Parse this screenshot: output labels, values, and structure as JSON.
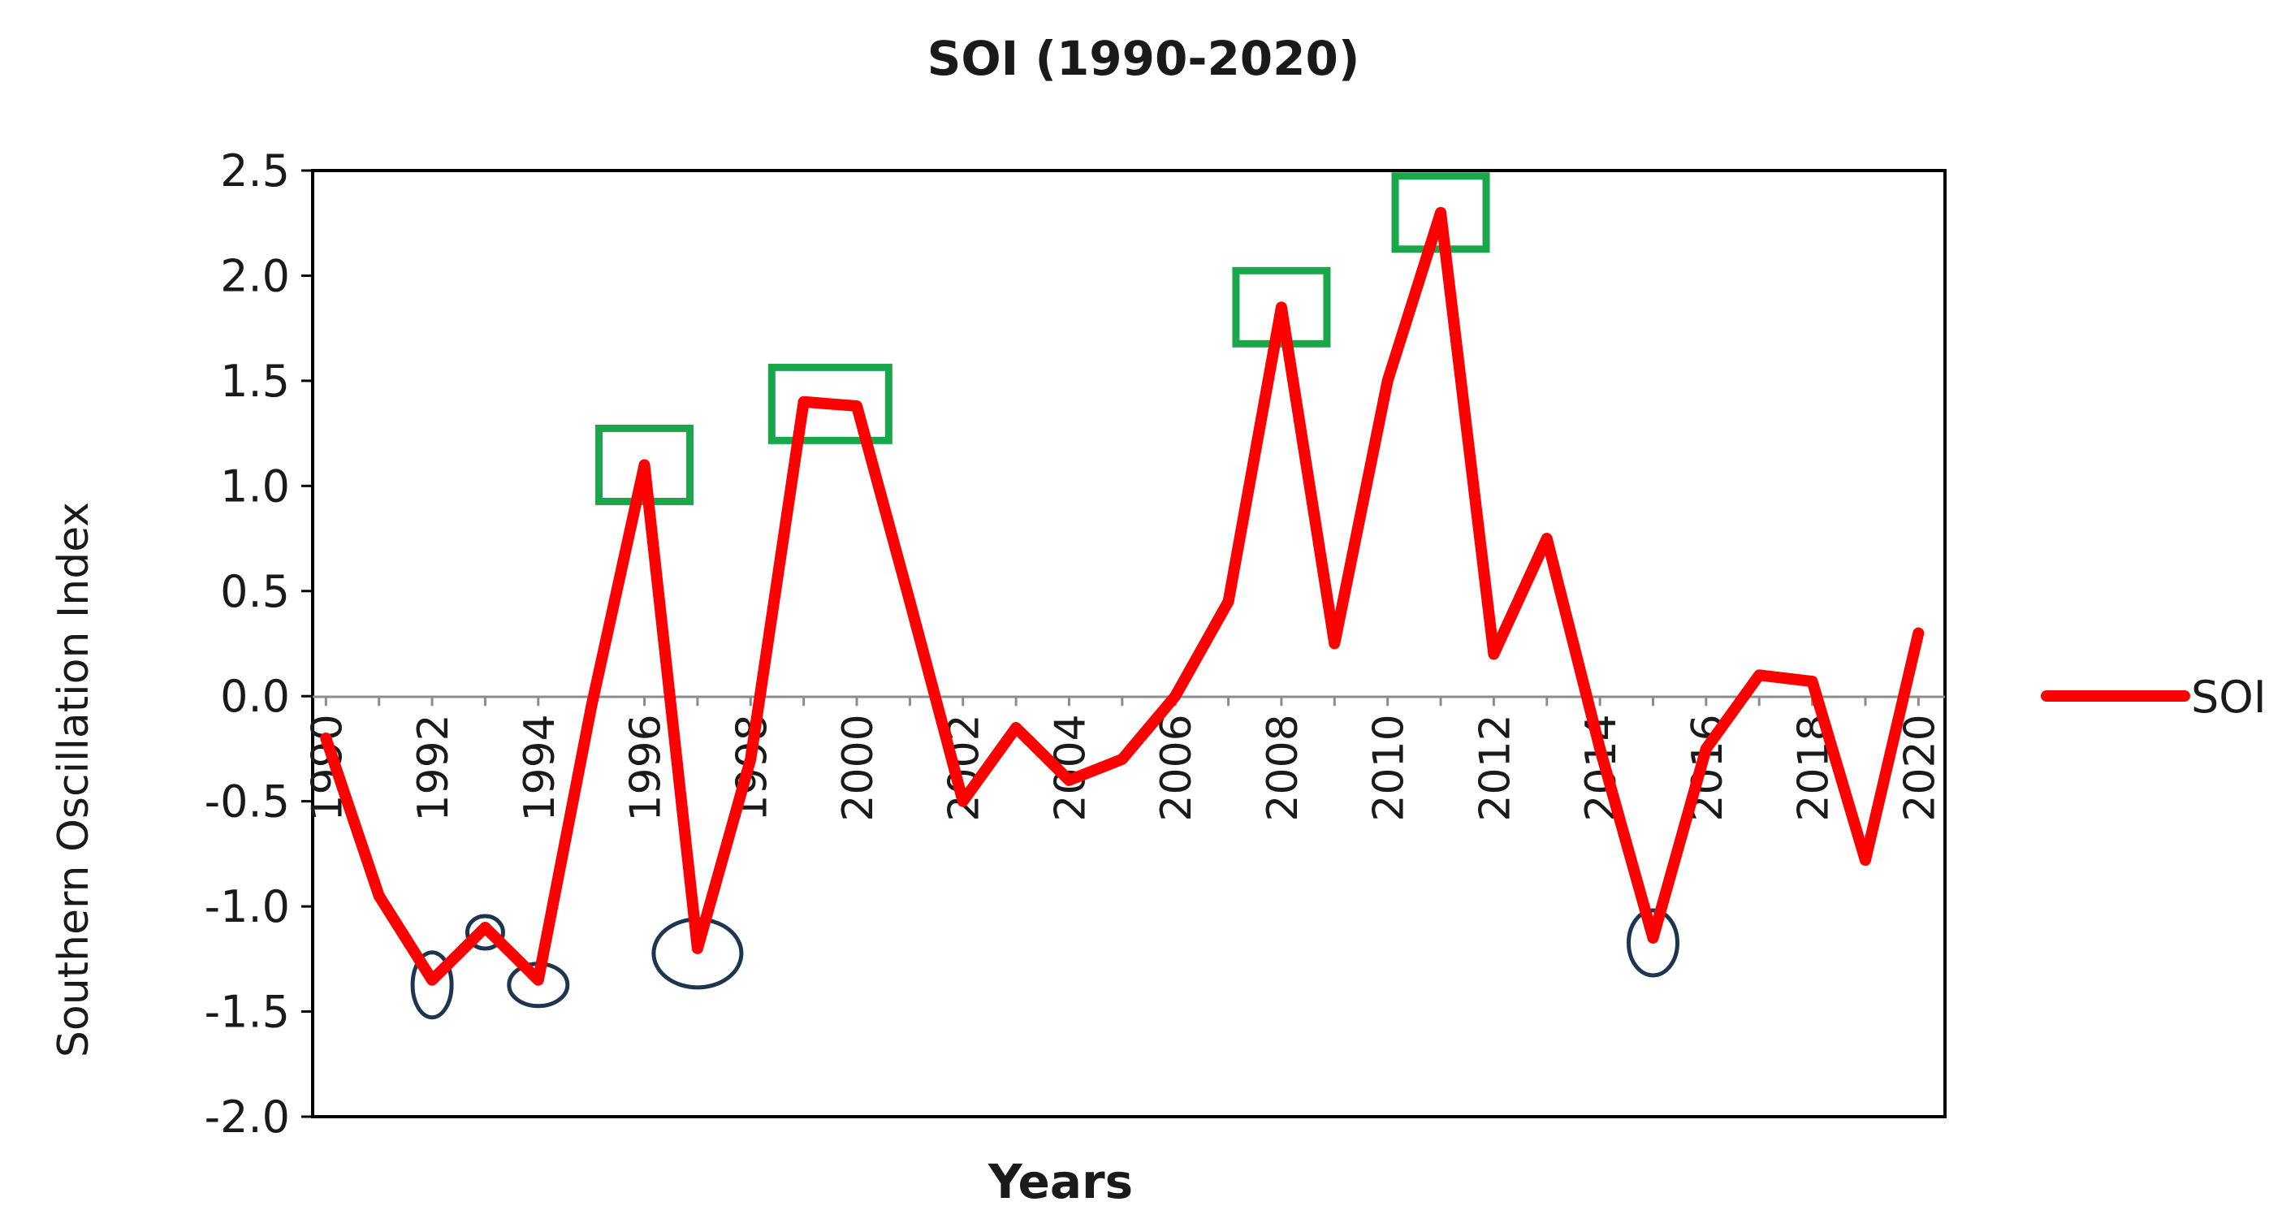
{
  "chart_data": {
    "type": "line",
    "title": "SOI (1990-2020)",
    "xlabel": "Years",
    "ylabel": "Southern Oscillation Index",
    "ylim": [
      -2.0,
      2.5
    ],
    "y_ticks": [
      "2.5",
      "2.0",
      "1.5",
      "1.0",
      "0.5",
      "0.0",
      "-0.5",
      "-1.0",
      "-1.5",
      "-2.0"
    ],
    "x_ticks": [
      "1990",
      "1992",
      "1994",
      "1996",
      "1998",
      "2000",
      "2002",
      "2004",
      "2006",
      "2008",
      "2010",
      "2012",
      "2014",
      "2016",
      "2018",
      "2020"
    ],
    "x": [
      1990,
      1991,
      1992,
      1993,
      1994,
      1995,
      1996,
      1997,
      1998,
      1999,
      2000,
      2001,
      2002,
      2003,
      2004,
      2005,
      2006,
      2007,
      2008,
      2009,
      2010,
      2011,
      2012,
      2013,
      2014,
      2015,
      2016,
      2017,
      2018,
      2019,
      2020
    ],
    "series": [
      {
        "name": "SOI",
        "color": "#ff0000",
        "values": [
          -0.2,
          -0.95,
          -1.35,
          -1.1,
          -1.35,
          -0.05,
          1.1,
          -1.2,
          -0.3,
          1.4,
          1.38,
          0.45,
          -0.5,
          -0.15,
          -0.4,
          -0.3,
          0.0,
          0.45,
          1.85,
          0.25,
          1.5,
          2.3,
          0.2,
          0.75,
          -0.25,
          -1.15,
          -0.25,
          0.1,
          0.07,
          -0.78,
          0.3
        ]
      }
    ],
    "grid": false,
    "legend_position": "right",
    "highlight_colors": {
      "positive_box": "#1aa64a",
      "negative_circle": "#1e3550"
    },
    "highlights_positive_boxes": [
      1996,
      1999.5,
      2008,
      2011
    ],
    "highlights_negative_circles": [
      1992,
      1993,
      1994,
      1997,
      2015
    ]
  }
}
